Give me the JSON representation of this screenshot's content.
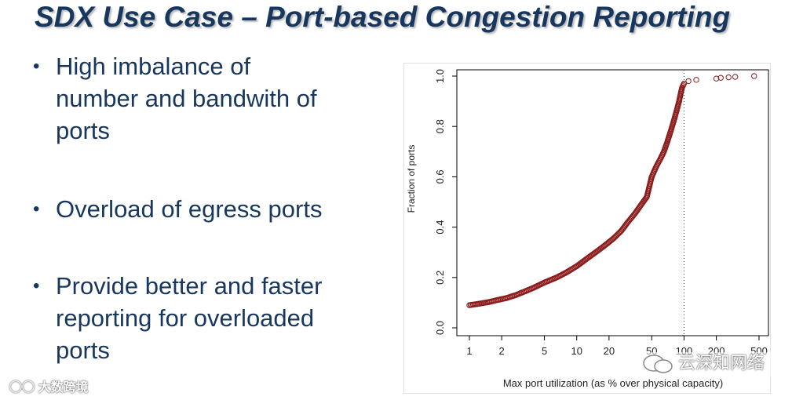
{
  "slide": {
    "title": "SDX Use Case – Port-based Congestion Reporting",
    "bullets": [
      {
        "line1": "High imbalance of",
        "line2": "number and bandwith of",
        "line3": "ports"
      },
      {
        "line1": "Overload of egress ports"
      },
      {
        "line1": "Provide better and faster",
        "line2": "reporting for overloaded",
        "line3": "ports"
      }
    ],
    "bullet_char": "•"
  },
  "watermarks": {
    "left": "大数跨境",
    "right": "云深知网络",
    "left_icon": "wechat-logo-icon",
    "right_icon": "wechat-bubble-icon"
  },
  "colors": {
    "title": "#17375e",
    "points": "#8b1a1a"
  },
  "chart_data": {
    "type": "scatter",
    "title": "",
    "xlabel": "Max port utilization (as % over physical capacity)",
    "ylabel": "Fraction of ports",
    "x_scale": "log",
    "xlim": [
      0.95,
      500
    ],
    "ylim": [
      0,
      1
    ],
    "x_ticks": [
      "1",
      "2",
      "5",
      "10",
      "20",
      "50",
      "100",
      "200",
      "500"
    ],
    "y_ticks": [
      "0.0",
      "0.2",
      "0.4",
      "0.6",
      "0.8",
      "1.0"
    ],
    "reference_line": {
      "x": 100,
      "style": "dotted"
    },
    "marker": "open-circle",
    "grid": false,
    "legend": "none",
    "points": [
      [
        1.0,
        0.09
      ],
      [
        1.2,
        0.095
      ],
      [
        1.5,
        0.102
      ],
      [
        1.8,
        0.11
      ],
      [
        2.2,
        0.118
      ],
      [
        2.7,
        0.13
      ],
      [
        3.3,
        0.145
      ],
      [
        4,
        0.16
      ],
      [
        5,
        0.18
      ],
      [
        6.5,
        0.2
      ],
      [
        8,
        0.22
      ],
      [
        10,
        0.245
      ],
      [
        12,
        0.27
      ],
      [
        15,
        0.3
      ],
      [
        18,
        0.325
      ],
      [
        22,
        0.355
      ],
      [
        26,
        0.385
      ],
      [
        30,
        0.42
      ],
      [
        35,
        0.455
      ],
      [
        40,
        0.49
      ],
      [
        45,
        0.52
      ],
      [
        50,
        0.6
      ],
      [
        55,
        0.64
      ],
      [
        60,
        0.67
      ],
      [
        65,
        0.7
      ],
      [
        70,
        0.74
      ],
      [
        75,
        0.78
      ],
      [
        80,
        0.82
      ],
      [
        85,
        0.86
      ],
      [
        90,
        0.9
      ],
      [
        93,
        0.93
      ],
      [
        96,
        0.955
      ],
      [
        100,
        0.97
      ],
      [
        110,
        0.98
      ],
      [
        130,
        0.985
      ],
      [
        200,
        0.99
      ],
      [
        220,
        0.993
      ],
      [
        260,
        0.995
      ],
      [
        300,
        0.997
      ],
      [
        450,
        1.0
      ]
    ]
  }
}
